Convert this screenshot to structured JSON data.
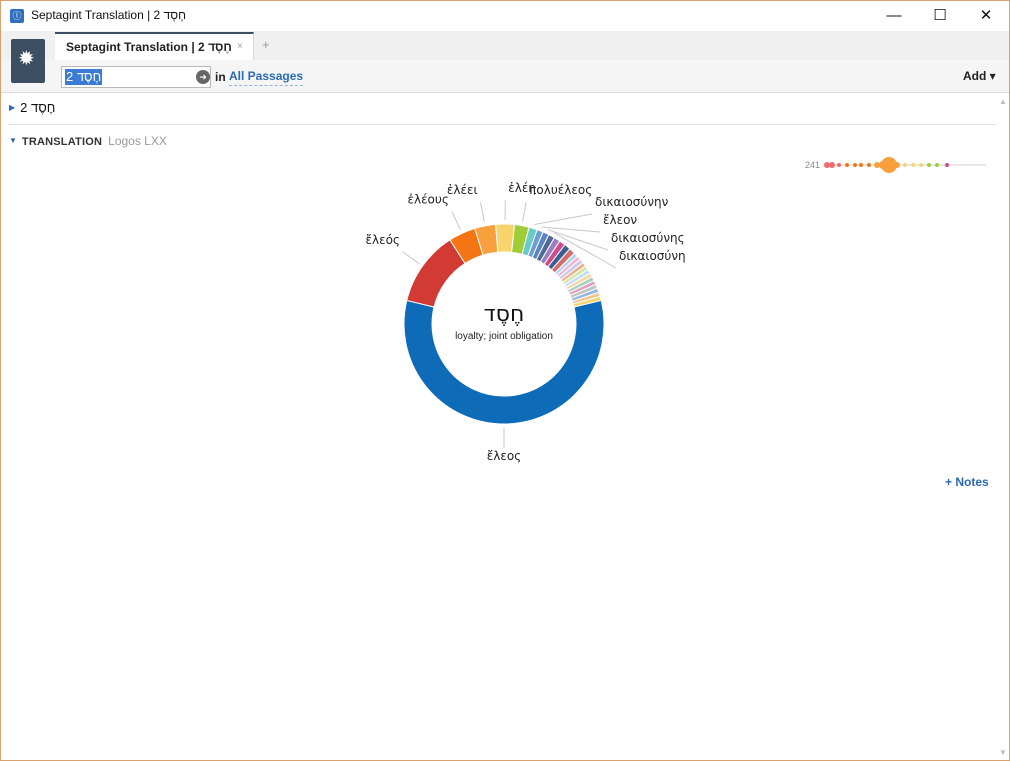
{
  "window": {
    "title": "Septagint Translation | 2 חֶסֶד",
    "minimize_icon": "minimize-icon",
    "maximize_icon": "maximize-icon",
    "close_icon": "close-icon"
  },
  "tabs": [
    {
      "label": "Septagint Translation | 2 חֶסֶד",
      "close": "×"
    }
  ],
  "tab_add": "+",
  "search": {
    "value": "2 חֶסֶד",
    "in_label": "in",
    "scope": "All Passages",
    "add_label": "Add ▾"
  },
  "sections": {
    "word_heading": "2 חֶסֶד",
    "translation_label": "TRANSLATION",
    "translation_source": "Logos LXX"
  },
  "minimap": {
    "count": "241"
  },
  "notes_link": "+ Notes",
  "colors": {
    "accent": "#2a6ab5",
    "panel_menu": "#3c4f62"
  },
  "chart_data": {
    "type": "pie",
    "style": "donut",
    "center_title": "חֶסֶד",
    "center_subtitle": "loyalty; joint obligation",
    "slices": [
      {
        "label": "ἔλεος",
        "value": 171,
        "color": "#0d6bb8"
      },
      {
        "label": "ἔλεός",
        "value": 36,
        "color": "#d13b33"
      },
      {
        "label": "ἐλέους",
        "value": 13,
        "color": "#f57413"
      },
      {
        "label": "ἐλέει",
        "value": 10,
        "color": "#f8a03e"
      },
      {
        "label": "ἐλέη",
        "value": 9,
        "color": "#f7d46c"
      },
      {
        "label": "πολυέλεος",
        "value": 7,
        "color": "#9fcd35"
      },
      {
        "label": "δικαιοσύνην",
        "value": 4,
        "color": "#69cbc7"
      },
      {
        "label": "ἔλεον",
        "value": 3,
        "color": "#6c9ed6"
      },
      {
        "label": "δικαιοσύνης",
        "value": 3,
        "color": "#5a84c4"
      },
      {
        "label": "δικαιοσύνη",
        "value": 3,
        "color": "#4f6998"
      },
      {
        "label": "",
        "value": 3,
        "color": "#9a7fc0"
      },
      {
        "label": "",
        "value": 3,
        "color": "#d04a8c"
      },
      {
        "label": "",
        "value": 3,
        "color": "#3b5f90"
      },
      {
        "label": "",
        "value": 3,
        "color": "#d66d6d"
      },
      {
        "label": "",
        "value": 2,
        "color": "#b3d4f0"
      },
      {
        "label": "",
        "value": 2,
        "color": "#f2b6d4"
      },
      {
        "label": "",
        "value": 2,
        "color": "#c8c8f0"
      },
      {
        "label": "",
        "value": 2,
        "color": "#e7b38c"
      },
      {
        "label": "",
        "value": 2,
        "color": "#d7e6a8"
      },
      {
        "label": "",
        "value": 2,
        "color": "#bfe0ff"
      },
      {
        "label": "",
        "value": 2,
        "color": "#f4d9a0"
      },
      {
        "label": "",
        "value": 2,
        "color": "#a8d0c0"
      },
      {
        "label": "",
        "value": 2,
        "color": "#e0a0c0"
      },
      {
        "label": "",
        "value": 2,
        "color": "#c0c0c0"
      },
      {
        "label": "",
        "value": 2,
        "color": "#90b8e0"
      },
      {
        "label": "",
        "value": 2,
        "color": "#f0c890"
      },
      {
        "label": "",
        "value": 2,
        "color": "#f7d46c"
      }
    ]
  }
}
